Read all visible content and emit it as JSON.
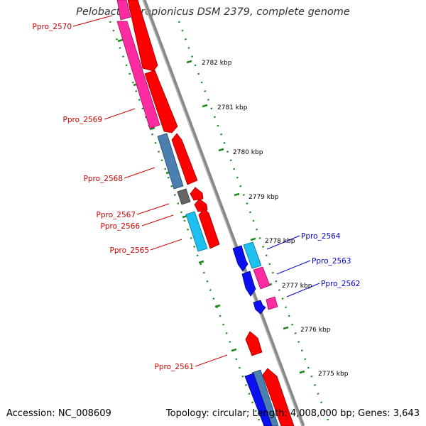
{
  "title": "Pelobacter propionicus DSM 2379, complete genome",
  "footer": {
    "accession": "Accession: NC_008609",
    "stats": "Topology: circular; Length: 4,008,000 bp; Genes: 3,643"
  },
  "ticks": [
    "2782 kbp",
    "2781 kbp",
    "2780 kbp",
    "2779 kbp",
    "2778 kbp",
    "2777 kbp",
    "2776 kbp",
    "2775 kbp"
  ],
  "gene_labels_left": [
    "Ppro_2570",
    "Ppro_2569",
    "Ppro_2568",
    "Ppro_2567",
    "Ppro_2566",
    "Ppro_2565",
    "Ppro_2561"
  ],
  "gene_labels_right": [
    "Ppro_2564",
    "Ppro_2563",
    "Ppro_2562"
  ],
  "colors": {
    "label_left": "#cc0000",
    "label_right": "#0000cc",
    "cds_red": "#ff0000",
    "cds_pink": "#ff2ba0",
    "cds_steel": "#4a7fb0",
    "cds_cyan": "#1ec0f0",
    "cds_blue": "#0a10f0",
    "cds_grey": "#666666",
    "backbone": "#7a7a7a",
    "ticks": "#1a8a1a"
  }
}
